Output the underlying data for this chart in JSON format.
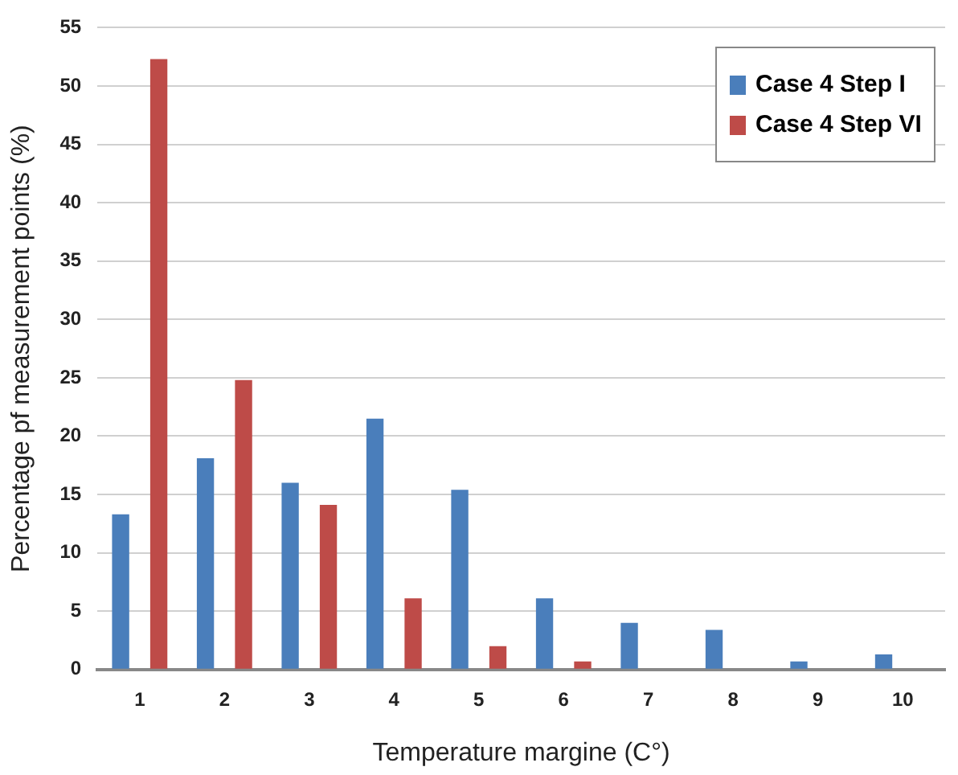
{
  "chart_data": {
    "type": "bar",
    "xlabel": "Temperature margine (C°)",
    "ylabel": "Percentage pf measurement points (%)",
    "categories": [
      "1",
      "2",
      "3",
      "4",
      "5",
      "6",
      "7",
      "8",
      "9",
      "10"
    ],
    "series": [
      {
        "name": "Case 4 Step I",
        "color": "#4a7ebb",
        "values": [
          13.3,
          18.1,
          16.0,
          21.5,
          15.4,
          6.1,
          4.0,
          3.4,
          0.7,
          1.3
        ]
      },
      {
        "name": "Case 4 Step VI",
        "color": "#be4b48",
        "values": [
          52.3,
          24.8,
          14.1,
          6.1,
          2.0,
          0.7,
          0,
          0,
          0,
          0
        ]
      }
    ],
    "ylim": [
      0,
      55
    ],
    "yticks": [
      0,
      5,
      10,
      15,
      20,
      25,
      30,
      35,
      40,
      45,
      50,
      55
    ],
    "grid": "y",
    "legend": "top right"
  }
}
